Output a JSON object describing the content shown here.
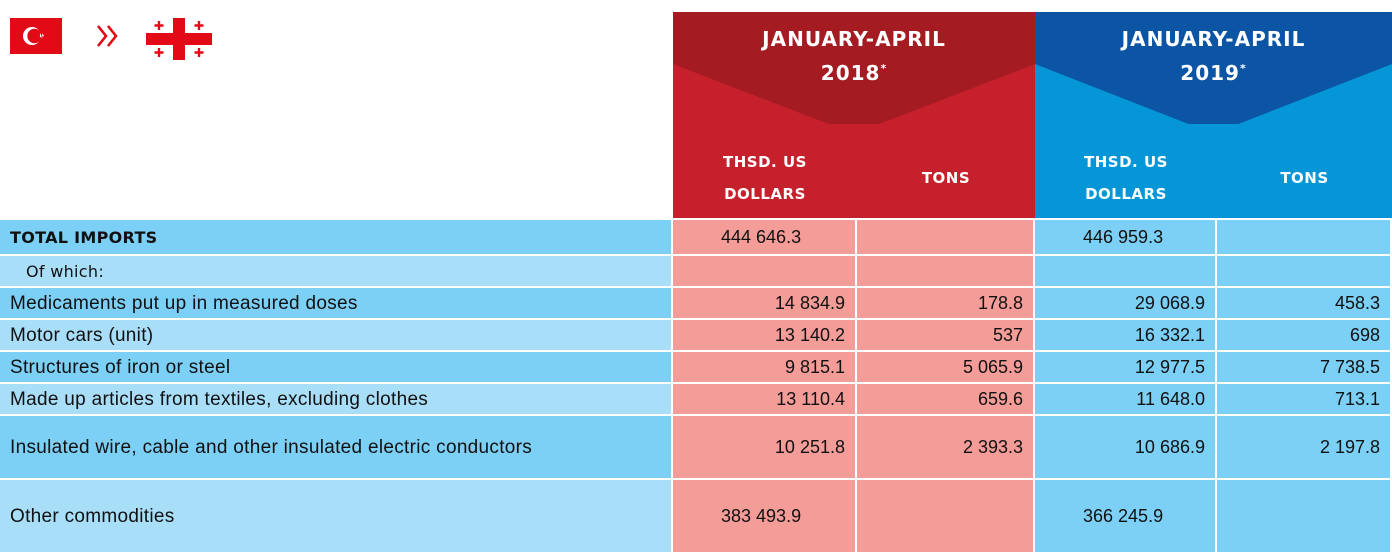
{
  "header": {
    "periods": [
      {
        "line1": "JANUARY-APRIL",
        "year": "2018",
        "mark": "*",
        "columns": [
          "THSD. US DOLLARS",
          "TONS"
        ]
      },
      {
        "line1": "JANUARY-APRIL",
        "year": "2019",
        "mark": "*",
        "columns": [
          "THSD. US DOLLARS",
          "TONS"
        ]
      }
    ]
  },
  "table": {
    "rows": [
      {
        "label": "TOTAL IMPORTS",
        "values": [
          "444 646.3",
          null,
          "446 959.3",
          null
        ]
      },
      {
        "label": "Of which:",
        "values": [
          null,
          null,
          null,
          null
        ]
      },
      {
        "label": "Medicaments put up in measured doses",
        "values": [
          "14 834.9",
          "178.8",
          "29 068.9",
          "458.3"
        ]
      },
      {
        "label": "Motor cars (unit)",
        "values": [
          "13 140.2",
          "537",
          "16 332.1",
          "698"
        ]
      },
      {
        "label": "Structures of iron or steel",
        "values": [
          "9 815.1",
          "5 065.9",
          "12 977.5",
          "7 738.5"
        ]
      },
      {
        "label": "Made up articles from textiles, excluding clothes",
        "values": [
          "13 110.4",
          "659.6",
          "11 648.0",
          "713.1"
        ]
      },
      {
        "label": "Insulated wire, cable and other insulated electric conductors",
        "values": [
          "10 251.8",
          "2 393.3",
          "10 686.9",
          "2 197.8"
        ]
      },
      {
        "label": "Other commodities",
        "values": [
          "383 493.9",
          null,
          "366 245.9",
          null
        ]
      }
    ]
  }
}
